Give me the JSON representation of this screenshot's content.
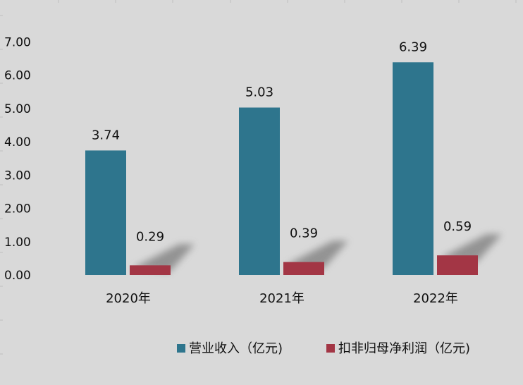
{
  "chart_data": {
    "type": "bar",
    "categories": [
      "2020年",
      "2021年",
      "2022年"
    ],
    "series": [
      {
        "name": "营业收入（亿元)",
        "values": [
          3.74,
          5.03,
          6.39
        ],
        "labels": [
          "3.74",
          "5.03",
          "6.39"
        ],
        "color": "#2E758D"
      },
      {
        "name": "扣非归母净利润（亿元)",
        "values": [
          0.29,
          0.39,
          0.59
        ],
        "labels": [
          "0.29",
          "0.39",
          "0.59"
        ],
        "color": "#A33645"
      }
    ],
    "yticks": [
      "0.00",
      "1.00",
      "2.00",
      "3.00",
      "4.00",
      "5.00",
      "6.00",
      "7.00"
    ],
    "ylim": [
      0,
      7
    ],
    "grid": false,
    "legend_position": "bottom",
    "background": "#D9D9D9"
  }
}
